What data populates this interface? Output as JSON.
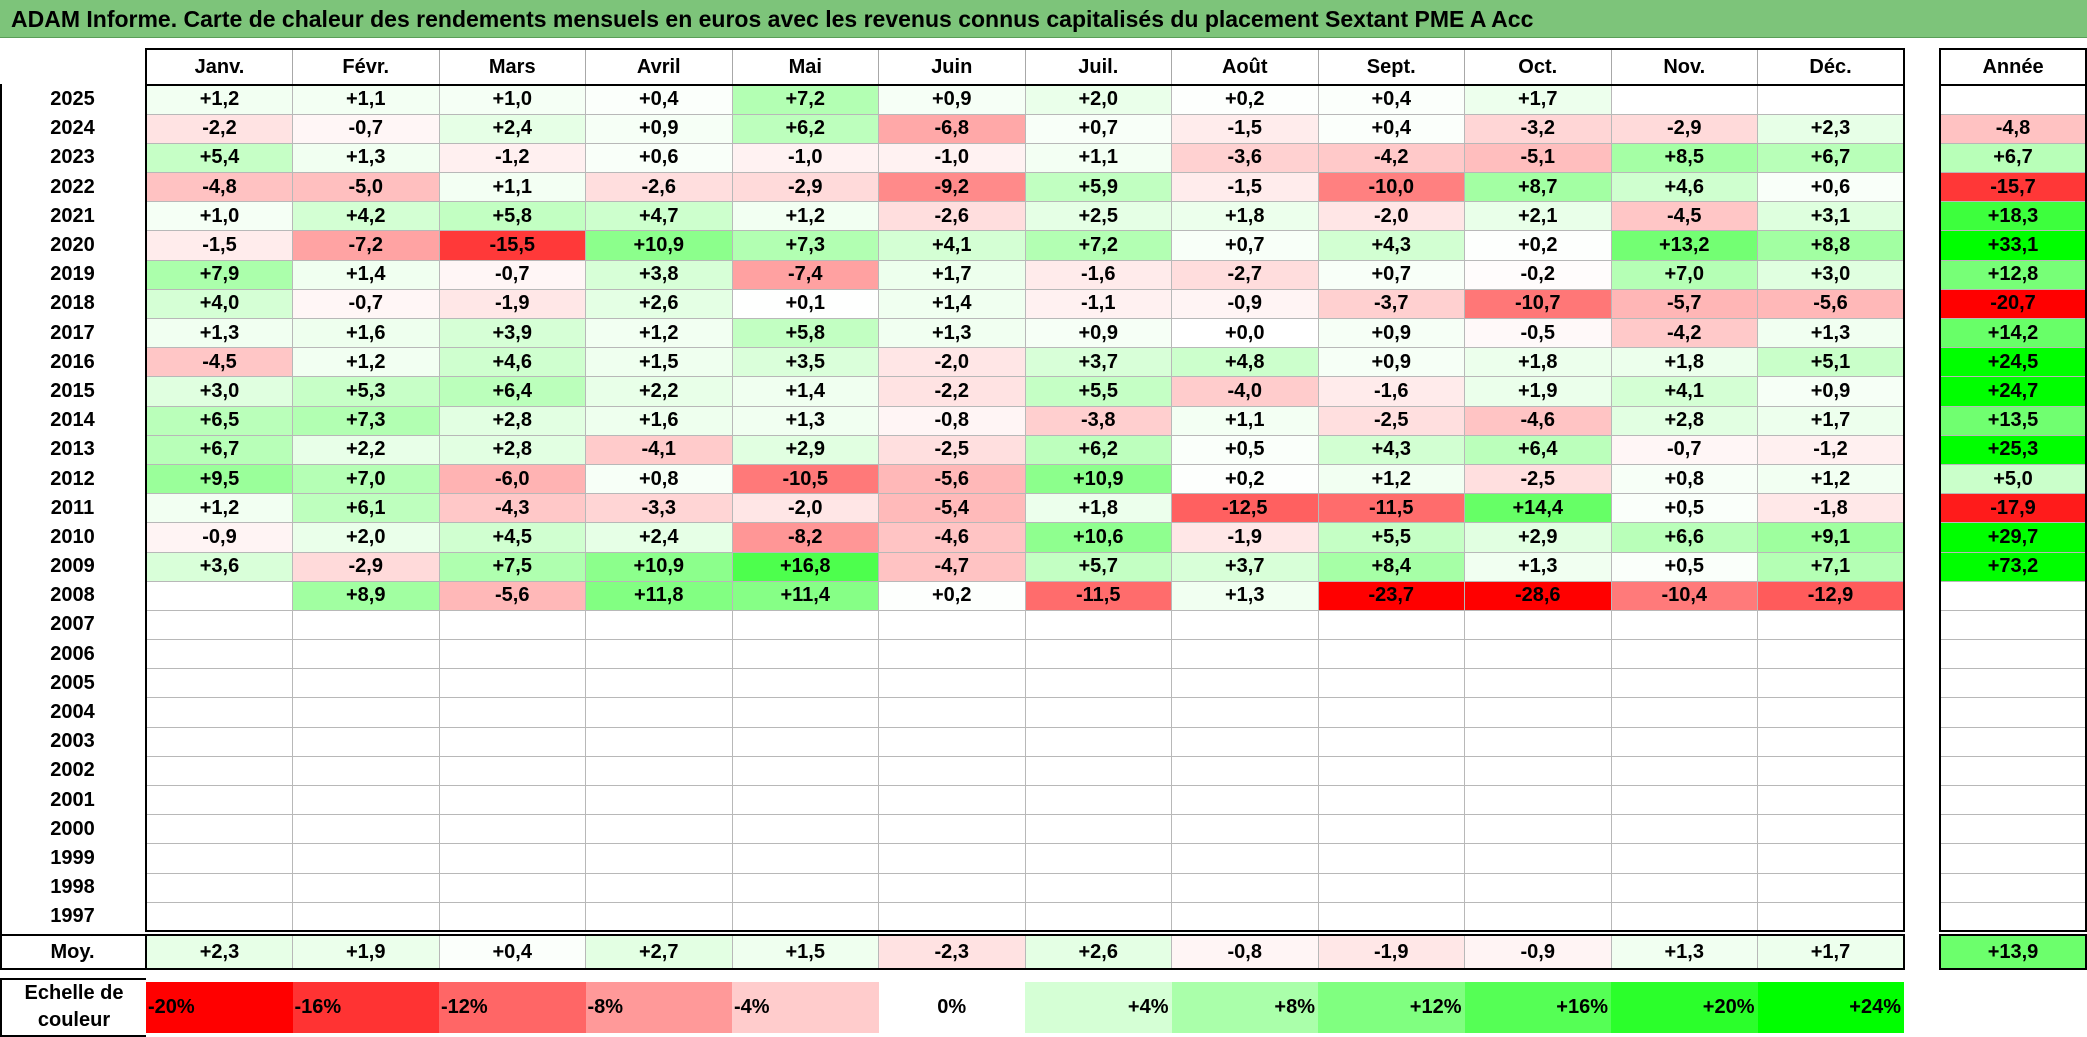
{
  "title": "ADAM Informe. Carte de chaleur des rendements mensuels en euros avec les revenus connus capitalisés du placement Sextant PME A Acc",
  "chart_data": {
    "type": "heatmap",
    "title": "ADAM Informe. Carte de chaleur des rendements mensuels en euros avec les revenus connus capitalisés du placement Sextant PME A Acc",
    "months": [
      "Janv.",
      "Févr.",
      "Mars",
      "Avril",
      "Mai",
      "Juin",
      "Juil.",
      "Août",
      "Sept.",
      "Oct.",
      "Nov.",
      "Déc."
    ],
    "annual_header": "Année",
    "rows": [
      {
        "year": "2025",
        "values": [
          "+1,2",
          "+1,1",
          "+1,0",
          "+0,4",
          "+7,2",
          "+0,9",
          "+2,0",
          "+0,2",
          "+0,4",
          "+1,7",
          "",
          ""
        ],
        "annual": ""
      },
      {
        "year": "2024",
        "values": [
          "-2,2",
          "-0,7",
          "+2,4",
          "+0,9",
          "+6,2",
          "-6,8",
          "+0,7",
          "-1,5",
          "+0,4",
          "-3,2",
          "-2,9",
          "+2,3"
        ],
        "annual": "-4,8"
      },
      {
        "year": "2023",
        "values": [
          "+5,4",
          "+1,3",
          "-1,2",
          "+0,6",
          "-1,0",
          "-1,0",
          "+1,1",
          "-3,6",
          "-4,2",
          "-5,1",
          "+8,5",
          "+6,7"
        ],
        "annual": "+6,7"
      },
      {
        "year": "2022",
        "values": [
          "-4,8",
          "-5,0",
          "+1,1",
          "-2,6",
          "-2,9",
          "-9,2",
          "+5,9",
          "-1,5",
          "-10,0",
          "+8,7",
          "+4,6",
          "+0,6"
        ],
        "annual": "-15,7"
      },
      {
        "year": "2021",
        "values": [
          "+1,0",
          "+4,2",
          "+5,8",
          "+4,7",
          "+1,2",
          "-2,6",
          "+2,5",
          "+1,8",
          "-2,0",
          "+2,1",
          "-4,5",
          "+3,1"
        ],
        "annual": "+18,3"
      },
      {
        "year": "2020",
        "values": [
          "-1,5",
          "-7,2",
          "-15,5",
          "+10,9",
          "+7,3",
          "+4,1",
          "+7,2",
          "+0,7",
          "+4,3",
          "+0,2",
          "+13,2",
          "+8,8"
        ],
        "annual": "+33,1"
      },
      {
        "year": "2019",
        "values": [
          "+7,9",
          "+1,4",
          "-0,7",
          "+3,8",
          "-7,4",
          "+1,7",
          "-1,6",
          "-2,7",
          "+0,7",
          "-0,2",
          "+7,0",
          "+3,0"
        ],
        "annual": "+12,8"
      },
      {
        "year": "2018",
        "values": [
          "+4,0",
          "-0,7",
          "-1,9",
          "+2,6",
          "+0,1",
          "+1,4",
          "-1,1",
          "-0,9",
          "-3,7",
          "-10,7",
          "-5,7",
          "-5,6"
        ],
        "annual": "-20,7"
      },
      {
        "year": "2017",
        "values": [
          "+1,3",
          "+1,6",
          "+3,9",
          "+1,2",
          "+5,8",
          "+1,3",
          "+0,9",
          "+0,0",
          "+0,9",
          "-0,5",
          "-4,2",
          "+1,3"
        ],
        "annual": "+14,2"
      },
      {
        "year": "2016",
        "values": [
          "-4,5",
          "+1,2",
          "+4,6",
          "+1,5",
          "+3,5",
          "-2,0",
          "+3,7",
          "+4,8",
          "+0,9",
          "+1,8",
          "+1,8",
          "+5,1"
        ],
        "annual": "+24,5"
      },
      {
        "year": "2015",
        "values": [
          "+3,0",
          "+5,3",
          "+6,4",
          "+2,2",
          "+1,4",
          "-2,2",
          "+5,5",
          "-4,0",
          "-1,6",
          "+1,9",
          "+4,1",
          "+0,9"
        ],
        "annual": "+24,7"
      },
      {
        "year": "2014",
        "values": [
          "+6,5",
          "+7,3",
          "+2,8",
          "+1,6",
          "+1,3",
          "-0,8",
          "-3,8",
          "+1,1",
          "-2,5",
          "-4,6",
          "+2,8",
          "+1,7"
        ],
        "annual": "+13,5"
      },
      {
        "year": "2013",
        "values": [
          "+6,7",
          "+2,2",
          "+2,8",
          "-4,1",
          "+2,9",
          "-2,5",
          "+6,2",
          "+0,5",
          "+4,3",
          "+6,4",
          "-0,7",
          "-1,2"
        ],
        "annual": "+25,3"
      },
      {
        "year": "2012",
        "values": [
          "+9,5",
          "+7,0",
          "-6,0",
          "+0,8",
          "-10,5",
          "-5,6",
          "+10,9",
          "+0,2",
          "+1,2",
          "-2,5",
          "+0,8",
          "+1,2"
        ],
        "annual": "+5,0"
      },
      {
        "year": "2011",
        "values": [
          "+1,2",
          "+6,1",
          "-4,3",
          "-3,3",
          "-2,0",
          "-5,4",
          "+1,8",
          "-12,5",
          "-11,5",
          "+14,4",
          "+0,5",
          "-1,8"
        ],
        "annual": "-17,9"
      },
      {
        "year": "2010",
        "values": [
          "-0,9",
          "+2,0",
          "+4,5",
          "+2,4",
          "-8,2",
          "-4,6",
          "+10,6",
          "-1,9",
          "+5,5",
          "+2,9",
          "+6,6",
          "+9,1"
        ],
        "annual": "+29,7"
      },
      {
        "year": "2009",
        "values": [
          "+3,6",
          "-2,9",
          "+7,5",
          "+10,9",
          "+16,8",
          "-4,7",
          "+5,7",
          "+3,7",
          "+8,4",
          "+1,3",
          "+0,5",
          "+7,1"
        ],
        "annual": "+73,2"
      },
      {
        "year": "2008",
        "values": [
          "",
          "+8,9",
          "-5,6",
          "+11,8",
          "+11,4",
          "+0,2",
          "-11,5",
          "+1,3",
          "-23,7",
          "-28,6",
          "-10,4",
          "-12,9"
        ],
        "annual": ""
      },
      {
        "year": "2007",
        "values": [
          "",
          "",
          "",
          "",
          "",
          "",
          "",
          "",
          "",
          "",
          "",
          ""
        ],
        "annual": ""
      },
      {
        "year": "2006",
        "values": [
          "",
          "",
          "",
          "",
          "",
          "",
          "",
          "",
          "",
          "",
          "",
          ""
        ],
        "annual": ""
      },
      {
        "year": "2005",
        "values": [
          "",
          "",
          "",
          "",
          "",
          "",
          "",
          "",
          "",
          "",
          "",
          ""
        ],
        "annual": ""
      },
      {
        "year": "2004",
        "values": [
          "",
          "",
          "",
          "",
          "",
          "",
          "",
          "",
          "",
          "",
          "",
          ""
        ],
        "annual": ""
      },
      {
        "year": "2003",
        "values": [
          "",
          "",
          "",
          "",
          "",
          "",
          "",
          "",
          "",
          "",
          "",
          ""
        ],
        "annual": ""
      },
      {
        "year": "2002",
        "values": [
          "",
          "",
          "",
          "",
          "",
          "",
          "",
          "",
          "",
          "",
          "",
          ""
        ],
        "annual": ""
      },
      {
        "year": "2001",
        "values": [
          "",
          "",
          "",
          "",
          "",
          "",
          "",
          "",
          "",
          "",
          "",
          ""
        ],
        "annual": ""
      },
      {
        "year": "2000",
        "values": [
          "",
          "",
          "",
          "",
          "",
          "",
          "",
          "",
          "",
          "",
          "",
          ""
        ],
        "annual": ""
      },
      {
        "year": "1999",
        "values": [
          "",
          "",
          "",
          "",
          "",
          "",
          "",
          "",
          "",
          "",
          "",
          ""
        ],
        "annual": ""
      },
      {
        "year": "1998",
        "values": [
          "",
          "",
          "",
          "",
          "",
          "",
          "",
          "",
          "",
          "",
          "",
          ""
        ],
        "annual": ""
      },
      {
        "year": "1997",
        "values": [
          "",
          "",
          "",
          "",
          "",
          "",
          "",
          "",
          "",
          "",
          "",
          ""
        ],
        "annual": ""
      }
    ],
    "average": {
      "label": "Moy.",
      "values": [
        "+2,3",
        "+1,9",
        "+0,4",
        "+2,7",
        "+1,5",
        "-2,3",
        "+2,6",
        "-0,8",
        "-1,9",
        "-0,9",
        "+1,3",
        "+1,7"
      ],
      "annual": "+13,9"
    },
    "scale_label": "Echelle de couleur",
    "scale": [
      {
        "label": "-20%",
        "value": -20,
        "color": "#ff0000"
      },
      {
        "label": "-16%",
        "value": -16,
        "color": "#ff3333"
      },
      {
        "label": "-12%",
        "value": -12,
        "color": "#ff6666"
      },
      {
        "label": "-8%",
        "value": -8,
        "color": "#ff9999"
      },
      {
        "label": "-4%",
        "value": -4,
        "color": "#ffcccc"
      },
      {
        "label": "0%",
        "value": 0,
        "color": "#ffffff"
      },
      {
        "label": "+4%",
        "value": 4,
        "color": "#d5ffd5"
      },
      {
        "label": "+8%",
        "value": 8,
        "color": "#aaffaa"
      },
      {
        "label": "+12%",
        "value": 12,
        "color": "#80ff80"
      },
      {
        "label": "+16%",
        "value": 16,
        "color": "#55ff55"
      },
      {
        "label": "+20%",
        "value": 20,
        "color": "#2bff2b"
      },
      {
        "label": "+24%",
        "value": 24,
        "color": "#00ff00"
      }
    ]
  }
}
